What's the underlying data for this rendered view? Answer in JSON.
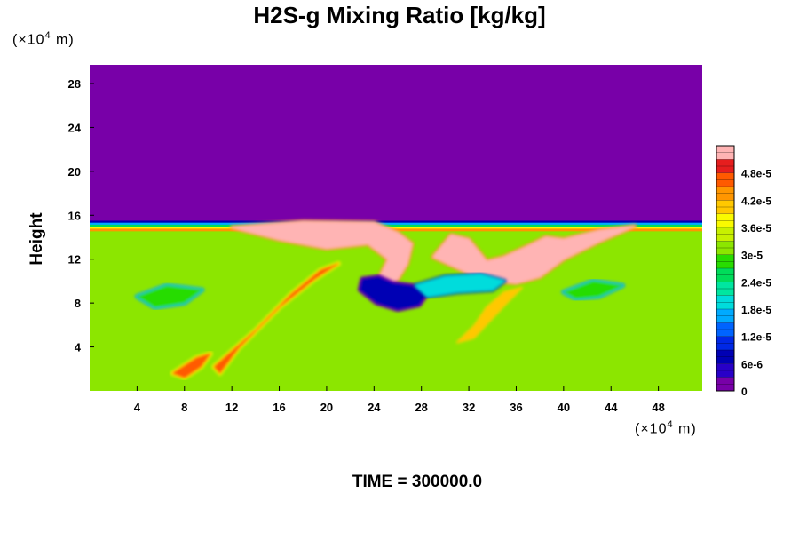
{
  "chart_data": {
    "type": "heatmap",
    "title": "H2S-g Mixing Ratio [kg/kg]",
    "ylabel": "Height",
    "y_unit": {
      "prefix": "(×10",
      "exp": "4",
      "suffix": " m)"
    },
    "x_unit": {
      "prefix": "(×10",
      "exp": "4",
      "suffix": " m)"
    },
    "xlim": [
      0,
      51.7
    ],
    "ylim": [
      0,
      29.7
    ],
    "x_ticks": [
      4,
      8,
      12,
      16,
      20,
      24,
      28,
      32,
      36,
      40,
      44,
      48
    ],
    "y_ticks": [
      4,
      8,
      12,
      16,
      20,
      24,
      28
    ],
    "colorbar": {
      "range": [
        0,
        5.4e-05
      ],
      "levels": [
        {
          "v": 0,
          "color": "#7800a8"
        },
        {
          "v": 3e-06,
          "color": "#2800c8"
        },
        {
          "v": 6e-06,
          "color": "#0000b4"
        },
        {
          "v": 9e-06,
          "color": "#0028e6"
        },
        {
          "v": 1.2e-05,
          "color": "#0064ff"
        },
        {
          "v": 1.5e-05,
          "color": "#00aaff"
        },
        {
          "v": 1.8e-05,
          "color": "#00dcdc"
        },
        {
          "v": 2.1e-05,
          "color": "#00e6a0"
        },
        {
          "v": 2.4e-05,
          "color": "#00dc5a"
        },
        {
          "v": 2.7e-05,
          "color": "#28dc00"
        },
        {
          "v": 3e-05,
          "color": "#8ce600"
        },
        {
          "v": 3.3e-05,
          "color": "#c8f000"
        },
        {
          "v": 3.6e-05,
          "color": "#fafa00"
        },
        {
          "v": 3.9e-05,
          "color": "#ffc800"
        },
        {
          "v": 4.2e-05,
          "color": "#ff9600"
        },
        {
          "v": 4.5e-05,
          "color": "#ff5a00"
        },
        {
          "v": 4.8e-05,
          "color": "#e61e1e"
        },
        {
          "v": 5.1e-05,
          "color": "#ffb4b4"
        }
      ],
      "tick_labels": [
        "0",
        "6e-6",
        "1.2e-5",
        "1.8e-5",
        "2.4e-5",
        "3e-5",
        "3.6e-5",
        "4.2e-5",
        "4.8e-5"
      ],
      "tick_values": [
        0,
        6e-06,
        1.2e-05,
        1.8e-05,
        2.4e-05,
        3e-05,
        3.6e-05,
        4.2e-05,
        4.8e-05
      ]
    },
    "background_value": 3.25e-05,
    "upper_value": 0,
    "interface_height": 15.5,
    "features": [
      {
        "name": "pink-plume-left",
        "value": 5.2e-05,
        "points": [
          [
            12,
            14.9
          ],
          [
            18,
            15.4
          ],
          [
            24,
            15.3
          ],
          [
            26,
            14.4
          ],
          [
            27.2,
            13.4
          ],
          [
            26.8,
            11.6
          ],
          [
            26,
            10.2
          ],
          [
            25.2,
            9.4
          ],
          [
            24.4,
            10.2
          ],
          [
            25.2,
            12.0
          ],
          [
            23.5,
            13.4
          ],
          [
            20,
            13.0
          ],
          [
            16,
            13.8
          ]
        ]
      },
      {
        "name": "pink-plume-right",
        "value": 5.2e-05,
        "points": [
          [
            29,
            12.2
          ],
          [
            30.5,
            14.2
          ],
          [
            32,
            13.8
          ],
          [
            33.5,
            11.8
          ],
          [
            35,
            12.2
          ],
          [
            37,
            13.2
          ],
          [
            38.5,
            14.0
          ],
          [
            40,
            13.8
          ],
          [
            43,
            14.6
          ],
          [
            46,
            15.0
          ],
          [
            43,
            13.6
          ],
          [
            40,
            12.0
          ],
          [
            38,
            10.4
          ],
          [
            36,
            9.8
          ],
          [
            33,
            10.2
          ],
          [
            31,
            11.2
          ]
        ]
      },
      {
        "name": "blue-eddy",
        "value": 8e-06,
        "points": [
          [
            22.8,
            9.2
          ],
          [
            24.2,
            8.0
          ],
          [
            26,
            7.4
          ],
          [
            27.8,
            7.8
          ],
          [
            28.6,
            9.0
          ],
          [
            27.2,
            9.6
          ],
          [
            25.6,
            9.8
          ],
          [
            24.4,
            10.4
          ],
          [
            23,
            10.2
          ]
        ]
      },
      {
        "name": "cyan-band",
        "value": 1.8e-05,
        "points": [
          [
            27.5,
            9.6
          ],
          [
            30,
            10.4
          ],
          [
            33,
            10.6
          ],
          [
            35,
            10.0
          ],
          [
            34,
            9.2
          ],
          [
            31,
            9.0
          ],
          [
            28.5,
            8.6
          ]
        ]
      },
      {
        "name": "red-filament-1",
        "value": 4.6e-05,
        "points": [
          [
            10.5,
            2.2
          ],
          [
            14,
            5.5
          ],
          [
            17,
            8.8
          ],
          [
            19.5,
            11.0
          ],
          [
            21,
            11.6
          ],
          [
            19,
            10.2
          ],
          [
            16,
            7.6
          ],
          [
            12.5,
            3.8
          ],
          [
            11,
            1.6
          ]
        ]
      },
      {
        "name": "red-filament-2",
        "value": 4.6e-05,
        "points": [
          [
            7,
            1.6
          ],
          [
            9,
            3.0
          ],
          [
            10.2,
            3.4
          ],
          [
            9.4,
            2.2
          ],
          [
            8,
            1.2
          ]
        ]
      },
      {
        "name": "orange-swirl",
        "value": 4e-05,
        "points": [
          [
            31,
            4.4
          ],
          [
            32.5,
            6.0
          ],
          [
            33.5,
            7.6
          ],
          [
            35,
            9.0
          ],
          [
            36.5,
            9.4
          ],
          [
            35.2,
            8.0
          ],
          [
            33.8,
            6.4
          ],
          [
            32.4,
            4.8
          ]
        ]
      },
      {
        "name": "green-swirl-left",
        "value": 2.7e-05,
        "points": [
          [
            4,
            8.6
          ],
          [
            6.5,
            9.6
          ],
          [
            9.5,
            9.2
          ],
          [
            8,
            8.0
          ],
          [
            5.5,
            7.6
          ]
        ]
      },
      {
        "name": "green-swirl-right",
        "value": 2.7e-05,
        "points": [
          [
            40,
            9.0
          ],
          [
            42.5,
            10.0
          ],
          [
            45,
            9.6
          ],
          [
            43,
            8.6
          ],
          [
            41,
            8.4
          ]
        ]
      }
    ],
    "time_label": "TIME = 300000.0"
  }
}
